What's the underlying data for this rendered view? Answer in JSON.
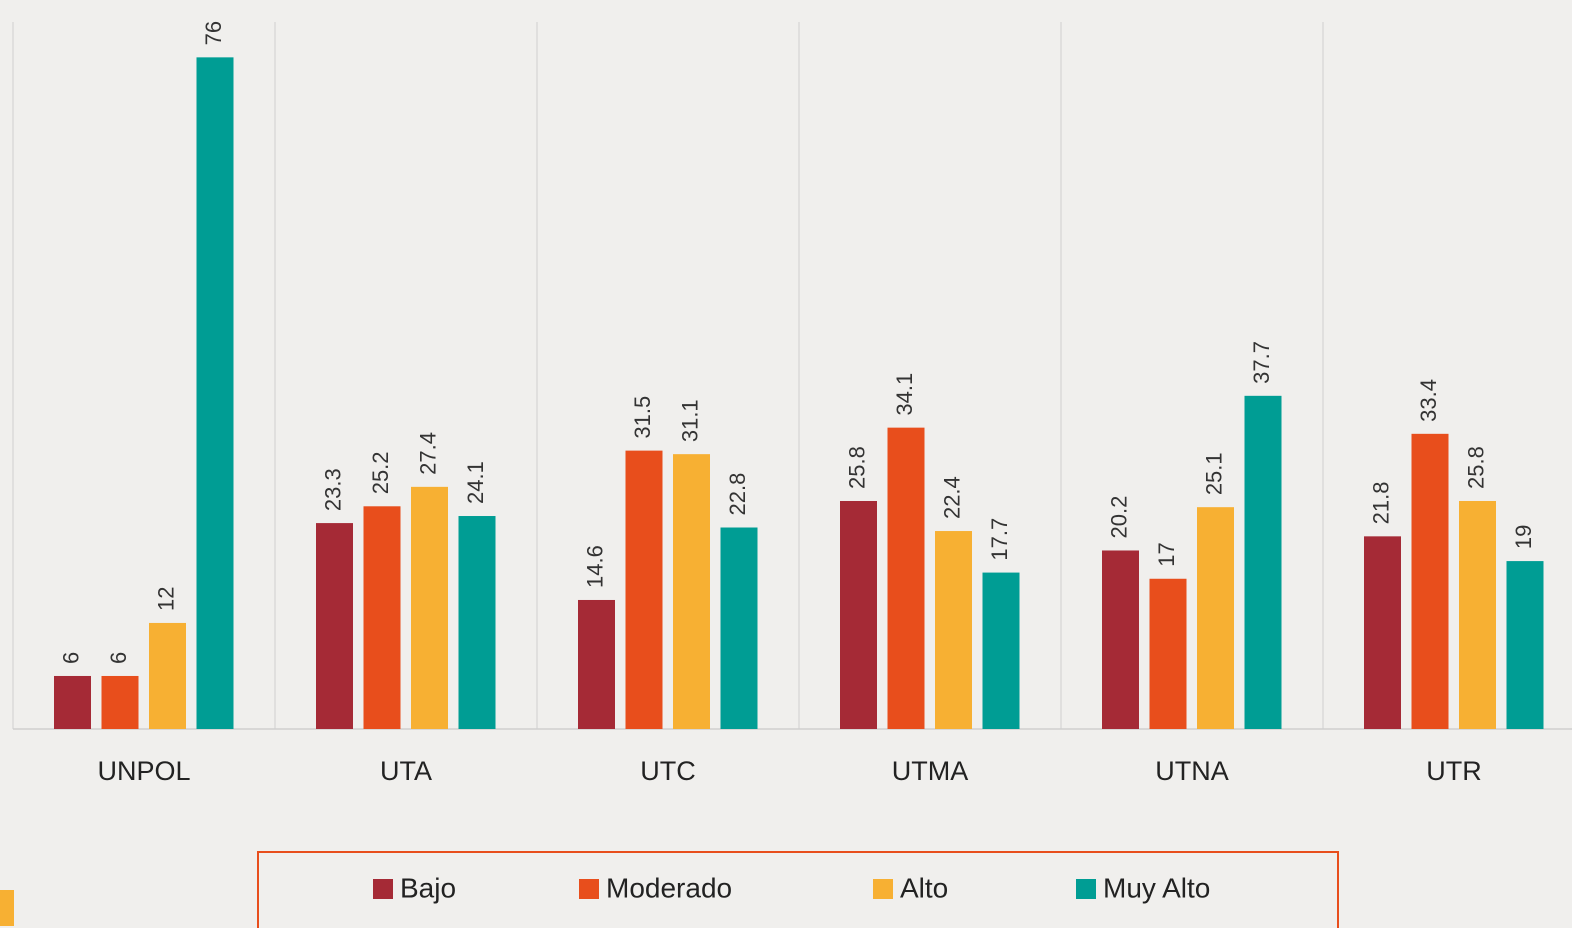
{
  "chart_data": {
    "type": "bar",
    "categories": [
      "UNPOL",
      "UTA",
      "UTC",
      "UTMA",
      "UTNA",
      "UTR"
    ],
    "series": [
      {
        "name": "Bajo",
        "color": "#a52a36",
        "values": [
          6,
          23.3,
          14.6,
          25.8,
          20.2,
          21.8
        ]
      },
      {
        "name": "Moderado",
        "color": "#e84e1c",
        "values": [
          6,
          25.2,
          31.5,
          34.1,
          17,
          33.4
        ]
      },
      {
        "name": "Alto",
        "color": "#f7b033",
        "values": [
          12,
          27.4,
          31.1,
          22.4,
          25.1,
          25.8
        ]
      },
      {
        "name": "Muy Alto",
        "color": "#009d94",
        "values": [
          76,
          24.1,
          22.8,
          17.7,
          37.7,
          19
        ]
      }
    ],
    "ylim": [
      0,
      80
    ]
  }
}
